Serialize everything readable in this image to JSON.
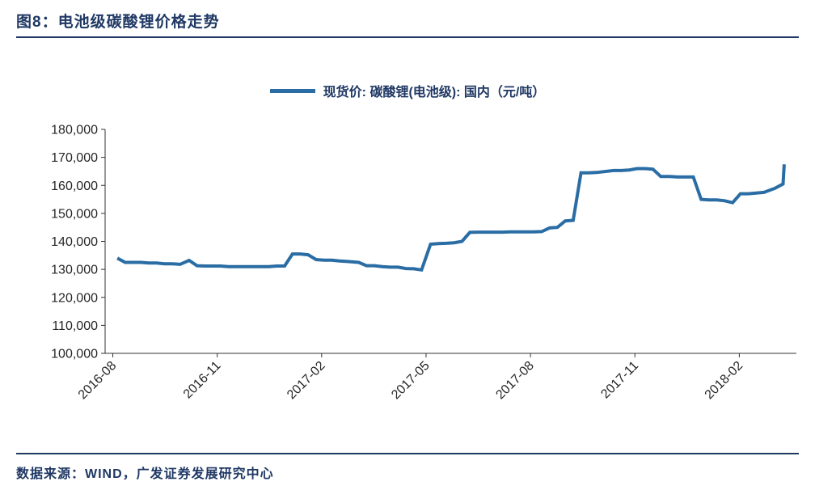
{
  "header": {
    "title": "图8：电池级碳酸锂价格走势"
  },
  "legend": {
    "label": "现货价: 碳酸锂(电池级): 国内（元/吨）"
  },
  "footer": {
    "source": "数据来源：WIND，广发证券发展研究中心"
  },
  "colors": {
    "accent": "#1f3864",
    "line": "#2a6da4",
    "axis": "#333333",
    "text": "#262626"
  },
  "chart_data": {
    "type": "line",
    "title": "电池级碳酸锂价格走势",
    "ylabel": "元/吨",
    "xlabel": "",
    "ylim": [
      100000,
      180000
    ],
    "ytick_step": 10000,
    "xticks": [
      "2016-08",
      "2016-11",
      "2017-02",
      "2017-05",
      "2017-08",
      "2017-11",
      "2018-02"
    ],
    "grid": false,
    "legend_position": "top",
    "series": [
      {
        "name": "现货价: 碳酸锂(电池级): 国内（元/吨）",
        "points": [
          [
            "2016-08-05",
            134000
          ],
          [
            "2016-08-12",
            132500
          ],
          [
            "2016-08-19",
            132500
          ],
          [
            "2016-08-26",
            132500
          ],
          [
            "2016-09-02",
            132300
          ],
          [
            "2016-09-09",
            132300
          ],
          [
            "2016-09-16",
            132000
          ],
          [
            "2016-09-23",
            132000
          ],
          [
            "2016-09-30",
            131800
          ],
          [
            "2016-10-07",
            133200
          ],
          [
            "2016-10-14",
            131300
          ],
          [
            "2016-10-21",
            131200
          ],
          [
            "2016-10-28",
            131200
          ],
          [
            "2016-11-04",
            131200
          ],
          [
            "2016-11-11",
            131000
          ],
          [
            "2016-11-18",
            131000
          ],
          [
            "2016-11-25",
            131000
          ],
          [
            "2016-12-02",
            131000
          ],
          [
            "2016-12-09",
            131000
          ],
          [
            "2016-12-16",
            131000
          ],
          [
            "2016-12-23",
            131200
          ],
          [
            "2016-12-30",
            131200
          ],
          [
            "2017-01-06",
            135500
          ],
          [
            "2017-01-13",
            135500
          ],
          [
            "2017-01-20",
            135200
          ],
          [
            "2017-01-27",
            133500
          ],
          [
            "2017-02-03",
            133300
          ],
          [
            "2017-02-10",
            133300
          ],
          [
            "2017-02-17",
            133000
          ],
          [
            "2017-02-24",
            132800
          ],
          [
            "2017-03-03",
            132500
          ],
          [
            "2017-03-10",
            131300
          ],
          [
            "2017-03-17",
            131300
          ],
          [
            "2017-03-24",
            131000
          ],
          [
            "2017-03-31",
            130800
          ],
          [
            "2017-04-07",
            130800
          ],
          [
            "2017-04-14",
            130300
          ],
          [
            "2017-04-21",
            130200
          ],
          [
            "2017-04-28",
            129800
          ],
          [
            "2017-05-05",
            139000
          ],
          [
            "2017-05-12",
            139200
          ],
          [
            "2017-05-19",
            139300
          ],
          [
            "2017-05-26",
            139500
          ],
          [
            "2017-06-02",
            140000
          ],
          [
            "2017-06-09",
            143200
          ],
          [
            "2017-06-16",
            143300
          ],
          [
            "2017-06-23",
            143300
          ],
          [
            "2017-06-30",
            143300
          ],
          [
            "2017-07-07",
            143300
          ],
          [
            "2017-07-14",
            143400
          ],
          [
            "2017-07-21",
            143400
          ],
          [
            "2017-07-28",
            143400
          ],
          [
            "2017-08-04",
            143400
          ],
          [
            "2017-08-11",
            143500
          ],
          [
            "2017-08-18",
            144800
          ],
          [
            "2017-08-25",
            145000
          ],
          [
            "2017-09-01",
            147300
          ],
          [
            "2017-09-08",
            147500
          ],
          [
            "2017-09-15",
            164500
          ],
          [
            "2017-09-22",
            164500
          ],
          [
            "2017-09-29",
            164600
          ],
          [
            "2017-10-13",
            165300
          ],
          [
            "2017-10-20",
            165300
          ],
          [
            "2017-10-27",
            165500
          ],
          [
            "2017-11-03",
            166000
          ],
          [
            "2017-11-10",
            166000
          ],
          [
            "2017-11-17",
            165800
          ],
          [
            "2017-11-24",
            163200
          ],
          [
            "2017-12-01",
            163200
          ],
          [
            "2017-12-08",
            163000
          ],
          [
            "2017-12-15",
            163000
          ],
          [
            "2017-12-22",
            163000
          ],
          [
            "2017-12-29",
            155000
          ],
          [
            "2018-01-05",
            154800
          ],
          [
            "2018-01-12",
            154800
          ],
          [
            "2018-01-19",
            154500
          ],
          [
            "2018-01-26",
            153800
          ],
          [
            "2018-02-02",
            157000
          ],
          [
            "2018-02-09",
            157000
          ],
          [
            "2018-02-23",
            157500
          ],
          [
            "2018-03-02",
            159000
          ],
          [
            "2018-03-09",
            160500
          ],
          [
            "2018-03-10",
            167500
          ]
        ]
      }
    ]
  }
}
